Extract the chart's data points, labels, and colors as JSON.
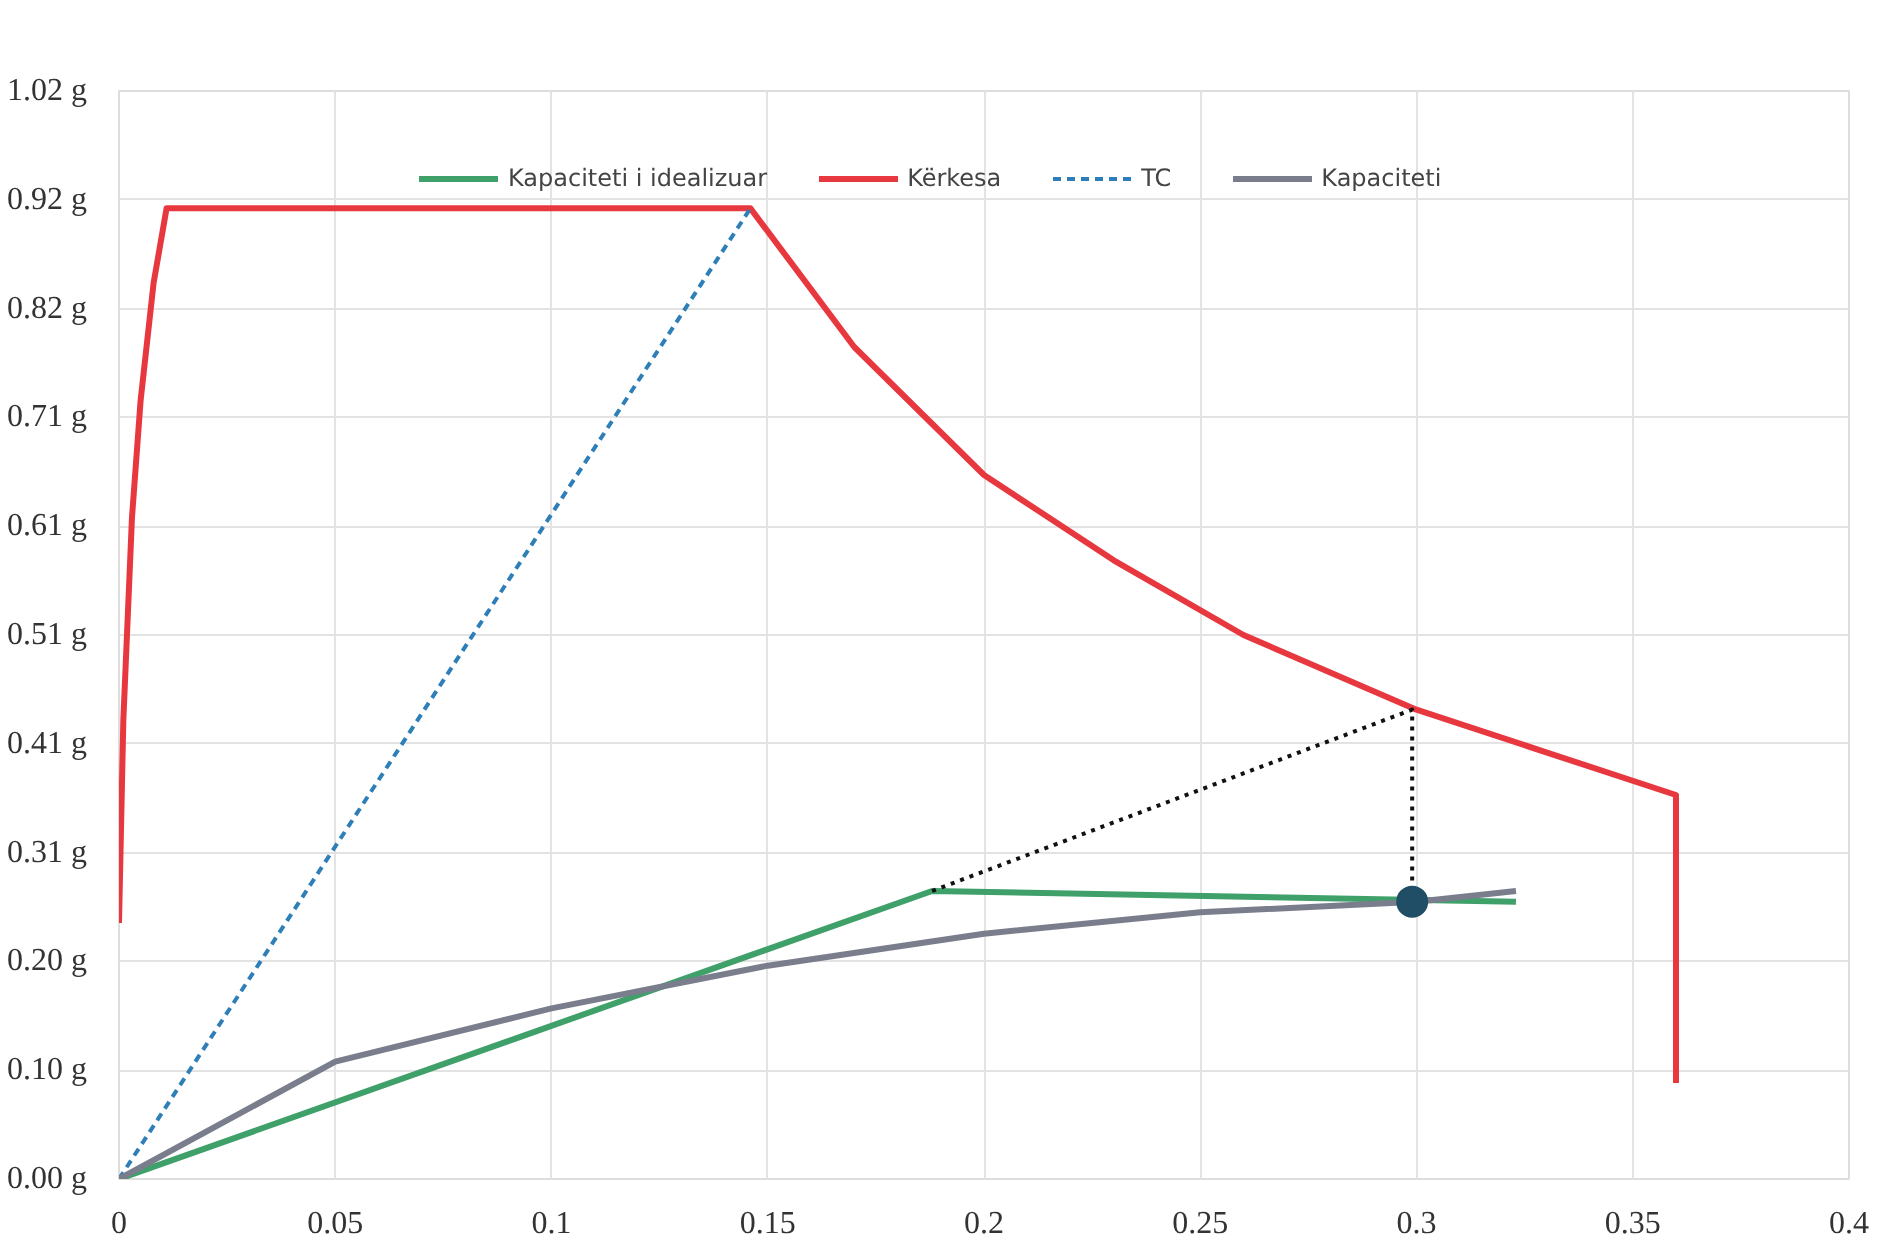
{
  "chart_data": {
    "type": "line",
    "xlim": [
      0,
      0.4
    ],
    "xticks": [
      0,
      0.05,
      0.1,
      0.15,
      0.2,
      0.25,
      0.3,
      0.35,
      0.4
    ],
    "ylim": [
      0,
      1.02
    ],
    "yticks": [
      {
        "value": 0,
        "label": "0.00 g"
      },
      {
        "value": 0.102,
        "label": "0.10 g"
      },
      {
        "value": 0.204,
        "label": "0.20 g"
      },
      {
        "value": 0.306,
        "label": "0.31 g"
      },
      {
        "value": 0.408,
        "label": "0.41 g"
      },
      {
        "value": 0.51,
        "label": "0.51 g"
      },
      {
        "value": 0.612,
        "label": "0.61 g"
      },
      {
        "value": 0.714,
        "label": "0.71 g"
      },
      {
        "value": 0.816,
        "label": "0.82 g"
      },
      {
        "value": 0.918,
        "label": "0.92 g"
      },
      {
        "value": 1.02,
        "label": "1.02 g"
      }
    ],
    "grid": true,
    "legend": "top",
    "marker": "none",
    "line_style": "solid",
    "series": [
      {
        "name": "Kapaciteti i idealizuar",
        "color": "#3fa06a",
        "x": [
          0,
          0.188,
          0.323
        ],
        "values": [
          0,
          0.27,
          0.26
        ]
      },
      {
        "name": "Kërkesa",
        "color": "#e8383f",
        "x": [
          0,
          0.001,
          0.003,
          0.005,
          0.008,
          0.011,
          0.146,
          0.17,
          0.2,
          0.23,
          0.26,
          0.3,
          0.33,
          0.36,
          0.36
        ],
        "values": [
          0.24,
          0.43,
          0.62,
          0.73,
          0.84,
          0.91,
          0.91,
          0.78,
          0.66,
          0.58,
          0.51,
          0.44,
          0.4,
          0.36,
          0.09
        ]
      },
      {
        "name": "TC",
        "color": "#2e7fb8",
        "line_style": "dashed",
        "x": [
          0,
          0.146
        ],
        "values": [
          0,
          0.91
        ]
      },
      {
        "name": "Kapaciteti",
        "color": "#7a7d8c",
        "x": [
          0,
          0.05,
          0.1,
          0.15,
          0.2,
          0.25,
          0.3,
          0.323
        ],
        "values": [
          0,
          0.11,
          0.16,
          0.2,
          0.23,
          0.25,
          0.26,
          0.27
        ]
      },
      {
        "color": "#111111",
        "line_style": "dotted",
        "x": [
          0.188,
          0.299,
          0.299
        ],
        "values": [
          0.27,
          0.44,
          0.26
        ]
      },
      {
        "type": "scatter",
        "marker": "circle",
        "color": "#1f4e66",
        "x": [
          0.299
        ],
        "values": [
          0.26
        ]
      }
    ]
  }
}
